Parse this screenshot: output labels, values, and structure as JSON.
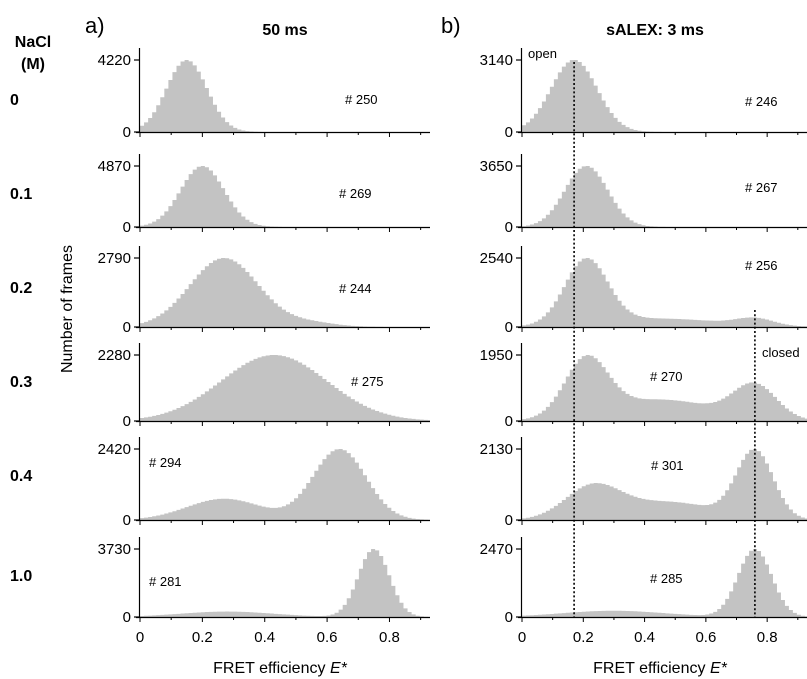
{
  "figure": {
    "left_heading": "NaCl",
    "left_heading_unit": "(M)",
    "y_axis_label": "Number of frames",
    "x_axis_label_prefix": "FRET efficiency",
    "x_axis_label_var": "E*",
    "row_labels": [
      "0",
      "0.1",
      "0.2",
      "0.3",
      "0.4",
      "1.0"
    ],
    "open_label": "open",
    "closed_label": "closed"
  },
  "chart_data": [
    {
      "type": "bar",
      "panel_letter": "a)",
      "title": "50 ms",
      "xlim": [
        0,
        0.93
      ],
      "xticks": [
        0,
        0.2,
        0.4,
        0.6,
        0.8
      ],
      "xtick_labels": [
        "0",
        "0.2",
        "0.4",
        "0.6",
        "0.8"
      ],
      "bin_width": 0.013,
      "grid": false,
      "rows": [
        {
          "salt": "0",
          "ymax_label": "4220",
          "ymax": 4220,
          "count_label": "# 250",
          "components": [
            {
              "mu": 0.15,
              "sigma": 0.065,
              "amp": 1.0
            }
          ]
        },
        {
          "salt": "0.1",
          "ymax_label": "4870",
          "ymax": 4870,
          "count_label": "# 269",
          "components": [
            {
              "mu": 0.2,
              "sigma": 0.07,
              "amp": 1.0
            }
          ]
        },
        {
          "salt": "0.2",
          "ymax_label": "2790",
          "ymax": 2790,
          "count_label": "# 244",
          "components": [
            {
              "mu": 0.27,
              "sigma": 0.11,
              "amp": 1.0
            },
            {
              "mu": 0.55,
              "sigma": 0.08,
              "amp": 0.06
            }
          ]
        },
        {
          "salt": "0.3",
          "ymax_label": "2280",
          "ymax": 2280,
          "count_label": "# 275",
          "components": [
            {
              "mu": 0.43,
              "sigma": 0.17,
              "amp": 1.0
            }
          ]
        },
        {
          "salt": "0.4",
          "ymax_label": "2420",
          "ymax": 2420,
          "count_label": "# 294",
          "components": [
            {
              "mu": 0.27,
              "sigma": 0.12,
              "amp": 0.27
            },
            {
              "mu": 0.64,
              "sigma": 0.085,
              "amp": 0.9
            }
          ]
        },
        {
          "salt": "1.0",
          "ymax_label": "3730",
          "ymax": 3730,
          "count_label": "# 281",
          "components": [
            {
              "mu": 0.28,
              "sigma": 0.15,
              "amp": 0.08
            },
            {
              "mu": 0.75,
              "sigma": 0.05,
              "amp": 1.0
            }
          ]
        }
      ]
    },
    {
      "type": "bar",
      "panel_letter": "b)",
      "title": "sALEX: 3 ms",
      "xlim": [
        0,
        0.93
      ],
      "xticks": [
        0,
        0.2,
        0.4,
        0.6,
        0.8
      ],
      "xtick_labels": [
        "0",
        "0.2",
        "0.4",
        "0.6",
        "0.8"
      ],
      "bin_width": 0.013,
      "grid": false,
      "reference_lines": [
        0.17,
        0.76
      ],
      "rows": [
        {
          "salt": "0",
          "ymax_label": "3140",
          "ymax": 3140,
          "count_label": "# 246",
          "components": [
            {
              "mu": 0.17,
              "sigma": 0.075,
              "amp": 1.0
            }
          ]
        },
        {
          "salt": "0.1",
          "ymax_label": "3650",
          "ymax": 3650,
          "count_label": "# 267",
          "components": [
            {
              "mu": 0.21,
              "sigma": 0.07,
              "amp": 1.0
            }
          ]
        },
        {
          "salt": "0.2",
          "ymax_label": "2540",
          "ymax": 2540,
          "count_label": "# 256",
          "components": [
            {
              "mu": 0.21,
              "sigma": 0.07,
              "amp": 0.93
            },
            {
              "mu": 0.45,
              "sigma": 0.2,
              "amp": 0.12
            },
            {
              "mu": 0.76,
              "sigma": 0.06,
              "amp": 0.1
            }
          ]
        },
        {
          "salt": "0.3",
          "ymax_label": "1950",
          "ymax": 1950,
          "count_label": "# 270",
          "components": [
            {
              "mu": 0.21,
              "sigma": 0.07,
              "amp": 0.85
            },
            {
              "mu": 0.45,
              "sigma": 0.18,
              "amp": 0.32
            },
            {
              "mu": 0.76,
              "sigma": 0.07,
              "amp": 0.5
            }
          ]
        },
        {
          "salt": "0.4",
          "ymax_label": "2130",
          "ymax": 2130,
          "count_label": "# 301",
          "components": [
            {
              "mu": 0.23,
              "sigma": 0.09,
              "amp": 0.45
            },
            {
              "mu": 0.48,
              "sigma": 0.15,
              "amp": 0.25
            },
            {
              "mu": 0.76,
              "sigma": 0.06,
              "amp": 0.95
            }
          ]
        },
        {
          "salt": "1.0",
          "ymax_label": "2470",
          "ymax": 2470,
          "count_label": "# 285",
          "components": [
            {
              "mu": 0.3,
              "sigma": 0.17,
              "amp": 0.09
            },
            {
              "mu": 0.76,
              "sigma": 0.055,
              "amp": 0.98
            }
          ]
        }
      ]
    }
  ]
}
